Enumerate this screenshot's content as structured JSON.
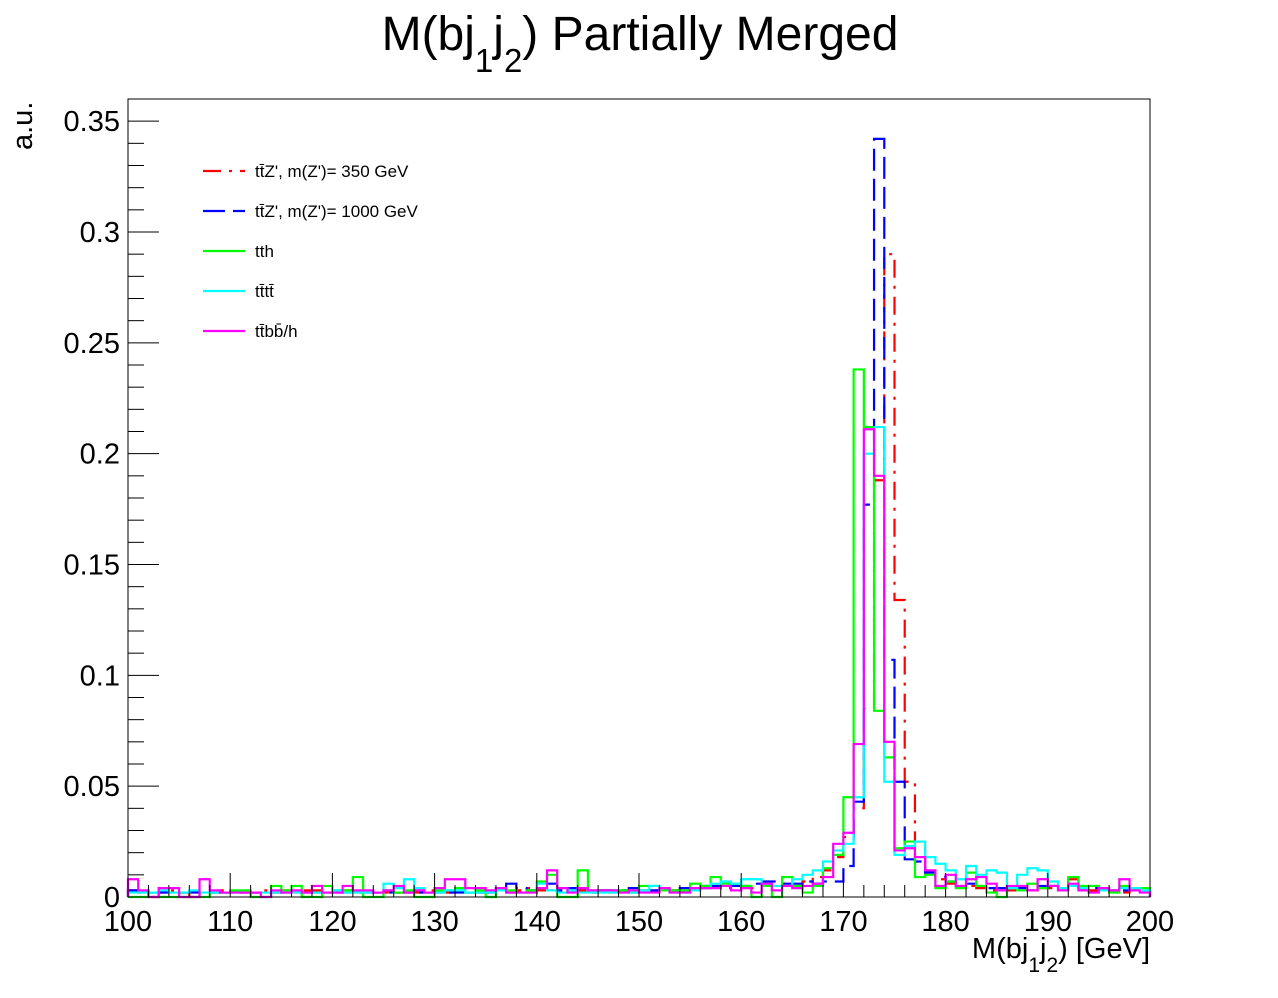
{
  "chart_data": {
    "type": "line",
    "title": "M(bj",
    "title_sub1": "1",
    "title_sub2": "j",
    "title_sub3": "2",
    "title_rest": ") Partially Merged",
    "ylabel": "a.u.",
    "xlabel_pre": "M(bj",
    "xlabel_sub1": "1",
    "xlabel_mid": "j",
    "xlabel_sub2": "2",
    "xlabel_post": ") [GeV]",
    "xlim": [
      100,
      200
    ],
    "ylim": [
      0,
      0.36
    ],
    "x_ticks": [
      100,
      110,
      120,
      130,
      140,
      150,
      160,
      170,
      180,
      190,
      200
    ],
    "x_tick_labels": [
      "100",
      "110",
      "120",
      "130",
      "140",
      "150",
      "160",
      "170",
      "180",
      "190",
      "200"
    ],
    "y_ticks": [
      0,
      0.05,
      0.1,
      0.15,
      0.2,
      0.25,
      0.3,
      0.35
    ],
    "y_tick_labels": [
      "0",
      "0.05",
      "0.1",
      "0.15",
      "0.2",
      "0.25",
      "0.3",
      "0.35"
    ],
    "bin_width": 1,
    "grid": false,
    "legend_position": "top-left",
    "series": [
      {
        "name": "tt̄Z', m(Z')= 350 GeV",
        "color": "#ff0000",
        "dash": "dash-dot",
        "values": [
          0.003,
          0.003,
          0,
          0.002,
          0.003,
          0.002,
          0,
          0.002,
          0.002,
          0.003,
          0.002,
          0.002,
          0.002,
          0.003,
          0.002,
          0.003,
          0.002,
          0.003,
          0.003,
          0.002,
          0.002,
          0.003,
          0.002,
          0.002,
          0.002,
          0.002,
          0.002,
          0.002,
          0.002,
          0.003,
          0.002,
          0.002,
          0.003,
          0.002,
          0.002,
          0.002,
          0.003,
          0.002,
          0.003,
          0.004,
          0.003,
          0.003,
          0.004,
          0.003,
          0.003,
          0.002,
          0.003,
          0.002,
          0.003,
          0.002,
          0.003,
          0.003,
          0.003,
          0.003,
          0.004,
          0.003,
          0.004,
          0.005,
          0.004,
          0.005,
          0.004,
          0.004,
          0.005,
          0.005,
          0.006,
          0.005,
          0.007,
          0.009,
          0.012,
          0.018,
          0.027,
          0.04,
          0.085,
          0.188,
          0.29,
          0.134,
          0.052,
          0.025,
          0.011,
          0.008,
          0.006,
          0.005,
          0.005,
          0.004,
          0.003,
          0.004,
          0.003,
          0.003,
          0.003,
          0.004,
          0.004,
          0.004,
          0.008,
          0.004,
          0.003,
          0.003,
          0.003,
          0.002,
          0.003,
          0.003
        ]
      },
      {
        "name": "tt̄Z', m(Z')= 1000 GeV",
        "color": "#0000ff",
        "dash": "long-dash",
        "values": [
          0.003,
          0.002,
          0.002,
          0.002,
          0.002,
          0.002,
          0.002,
          0.002,
          0.002,
          0.002,
          0.002,
          0.002,
          0.002,
          0.002,
          0.002,
          0.002,
          0.002,
          0.002,
          0.002,
          0.002,
          0.002,
          0.002,
          0.002,
          0.002,
          0.002,
          0.002,
          0.002,
          0.002,
          0.002,
          0.002,
          0.002,
          0.002,
          0.002,
          0.002,
          0.002,
          0.002,
          0.004,
          0.006,
          0.004,
          0.003,
          0.004,
          0.006,
          0.003,
          0.004,
          0.004,
          0.002,
          0.003,
          0.003,
          0.003,
          0.004,
          0.003,
          0.003,
          0.003,
          0.003,
          0.004,
          0.004,
          0.005,
          0.005,
          0.006,
          0.005,
          0.005,
          0.006,
          0.007,
          0.007,
          0.006,
          0.006,
          0.007,
          0.006,
          0.007,
          0.007,
          0.014,
          0.043,
          0.177,
          0.342,
          0.107,
          0.052,
          0.017,
          0.016,
          0.011,
          0.009,
          0.007,
          0.005,
          0.006,
          0.005,
          0.004,
          0.004,
          0.003,
          0.004,
          0.003,
          0.005,
          0.005,
          0.005,
          0.005,
          0.004,
          0.004,
          0.003,
          0.003,
          0.003,
          0.004,
          0.003
        ]
      },
      {
        "name": "tth",
        "color": "#00ff00",
        "dash": "solid",
        "values": [
          0,
          0,
          0.002,
          0,
          0,
          0,
          0,
          0,
          0.002,
          0.002,
          0.003,
          0.003,
          0,
          0,
          0.005,
          0.003,
          0.005,
          0,
          0,
          0.005,
          0.003,
          0.003,
          0.009,
          0,
          0,
          0.003,
          0.002,
          0.003,
          0,
          0,
          0.003,
          0.003,
          0.004,
          0.002,
          0.003,
          0,
          0.003,
          0.003,
          0.002,
          0.003,
          0.007,
          0.01,
          0,
          0,
          0.012,
          0.003,
          0.003,
          0.003,
          0.003,
          0.002,
          0.005,
          0.005,
          0.003,
          0.003,
          0.003,
          0.006,
          0.005,
          0.009,
          0.006,
          0.006,
          0.005,
          0,
          0.005,
          0,
          0.009,
          0.005,
          0.002,
          0.005,
          0.013,
          0.019,
          0.045,
          0.238,
          0.212,
          0.084,
          0.063,
          0.022,
          0.025,
          0.009,
          0.01,
          0.004,
          0.007,
          0.004,
          0.011,
          0.005,
          0.002,
          0,
          0.004,
          0.003,
          0.006,
          0.004,
          0.005,
          0.003,
          0.009,
          0.005,
          0.005,
          0.003,
          0.002,
          0.005,
          0.003,
          0.004
        ]
      },
      {
        "name": "tt̄tt̄",
        "color": "#00ffff",
        "dash": "solid",
        "values": [
          0.002,
          0.002,
          0.002,
          0.003,
          0.002,
          0.002,
          0.003,
          0.002,
          0.002,
          0.002,
          0.002,
          0.002,
          0.002,
          0.002,
          0.002,
          0.002,
          0.002,
          0.002,
          0.002,
          0.002,
          0.003,
          0.002,
          0.002,
          0.002,
          0.002,
          0.006,
          0.004,
          0.008,
          0.004,
          0.002,
          0.002,
          0.003,
          0.003,
          0.002,
          0.002,
          0.002,
          0.003,
          0.002,
          0.002,
          0.002,
          0.006,
          0.003,
          0.002,
          0.003,
          0.002,
          0.002,
          0.002,
          0.002,
          0.002,
          0.002,
          0.003,
          0.005,
          0.004,
          0.002,
          0.002,
          0.003,
          0.004,
          0.006,
          0.007,
          0.006,
          0.008,
          0.008,
          0.006,
          0.005,
          0.005,
          0.008,
          0.01,
          0.012,
          0.016,
          0.021,
          0.024,
          0.045,
          0.2,
          0.212,
          0.052,
          0.019,
          0.023,
          0.025,
          0.018,
          0.015,
          0.012,
          0.008,
          0.014,
          0.01,
          0.012,
          0.011,
          0.004,
          0.01,
          0.013,
          0.012,
          0.007,
          0.004,
          0.005,
          0.004,
          0.002,
          0.003,
          0.003,
          0.004,
          0.004,
          0.003
        ]
      },
      {
        "name": "tt̄bb̄/h",
        "color": "#ff00ff",
        "dash": "solid",
        "values": [
          0.008,
          0.003,
          0,
          0.004,
          0.004,
          0,
          0,
          0.008,
          0.003,
          0.002,
          0.002,
          0.002,
          0.002,
          0,
          0.003,
          0.002,
          0.003,
          0.002,
          0.005,
          0.002,
          0.002,
          0.005,
          0.003,
          0.003,
          0.002,
          0.003,
          0.005,
          0.002,
          0.003,
          0.002,
          0.004,
          0.008,
          0.008,
          0.004,
          0.004,
          0.003,
          0.004,
          0.002,
          0.002,
          0.002,
          0.004,
          0.012,
          0.004,
          0.002,
          0.004,
          0.003,
          0.003,
          0.003,
          0.002,
          0.003,
          0.002,
          0.002,
          0.004,
          0.002,
          0.002,
          0.004,
          0.004,
          0.004,
          0.005,
          0.003,
          0.004,
          0.002,
          0.006,
          0.003,
          0.005,
          0.004,
          0.005,
          0.006,
          0.009,
          0.024,
          0.029,
          0.069,
          0.211,
          0.19,
          0.07,
          0.021,
          0.022,
          0.018,
          0.012,
          0.005,
          0.01,
          0.005,
          0.008,
          0.009,
          0.006,
          0.003,
          0.005,
          0.005,
          0.003,
          0.008,
          0.005,
          0.003,
          0.006,
          0.003,
          0.002,
          0.004,
          0.003,
          0.008,
          0.003,
          0.002
        ]
      }
    ]
  }
}
